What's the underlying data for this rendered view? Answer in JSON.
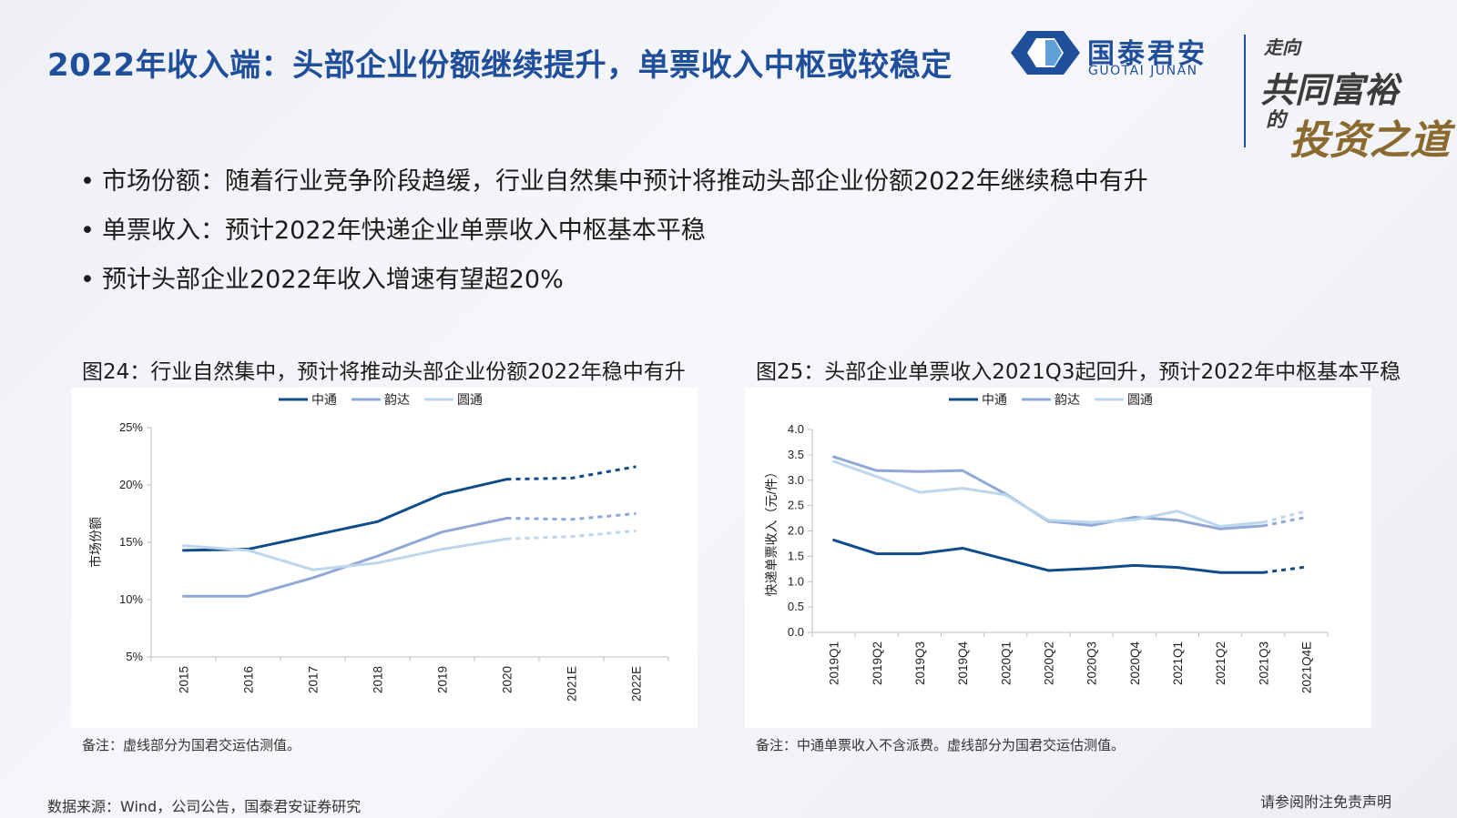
{
  "page": {
    "title": "2022年收入端：头部企业份额继续提升，单票收入中枢或较稳定",
    "logo": {
      "name": "国泰君安",
      "name_en": "GUOTAI JUNAN"
    },
    "slogan": {
      "line1": "走向",
      "line2": "共同富裕",
      "line3": "的",
      "line4": "投资之道"
    },
    "bullets": [
      "市场份额：随着行业竞争阶段趋缓，行业自然集中预计将推动头部企业份额2022年继续稳中有升",
      "单票收入：预计2022年快递企业单票收入中枢基本平稳",
      "预计头部企业2022年收入增速有望超20%"
    ],
    "bullet_symbol": "•",
    "source": "数据来源：Wind，公司公告，国泰君安证券研究",
    "disclaimer": "请参阅附注免责声明",
    "colors": {
      "title": "#1f4e9a",
      "zto": "#0f4c8a",
      "yunda": "#8fa8d6",
      "yto": "#bcd6ee"
    }
  },
  "chart_data": [
    {
      "type": "line",
      "caption": "图24：行业自然集中，预计将推动头部企业份额2022年稳中有升",
      "note": "备注：虚线部分为国君交运估测值。",
      "categories": [
        "2015",
        "2016",
        "2017",
        "2018",
        "2019",
        "2020",
        "2021E",
        "2022E"
      ],
      "ylabel": "市场份额",
      "ylim": [
        5,
        25
      ],
      "yticks": [
        5,
        10,
        15,
        20,
        25
      ],
      "ytick_labels": [
        "5%",
        "10%",
        "15%",
        "20%",
        "25%"
      ],
      "estimated_from_index": 5,
      "legend_position": "top",
      "series": [
        {
          "name": "中通",
          "values": [
            14.3,
            14.4,
            15.6,
            16.8,
            19.2,
            20.5,
            20.6,
            21.6
          ]
        },
        {
          "name": "韵达",
          "values": [
            10.3,
            10.3,
            11.9,
            13.8,
            15.9,
            17.1,
            17.0,
            17.5
          ]
        },
        {
          "name": "圆通",
          "values": [
            14.7,
            14.3,
            12.6,
            13.2,
            14.4,
            15.3,
            15.5,
            16.0
          ]
        }
      ]
    },
    {
      "type": "line",
      "caption": "图25：头部企业单票收入2021Q3起回升，预计2022年中枢基本平稳",
      "note": "备注：中通单票收入不含派费。虚线部分为国君交运估测值。",
      "categories": [
        "2019Q1",
        "2019Q2",
        "2019Q3",
        "2019Q4",
        "2020Q1",
        "2020Q2",
        "2020Q3",
        "2020Q4",
        "2021Q1",
        "2021Q2",
        "2021Q3",
        "2021Q4E"
      ],
      "ylabel": "快递单票收入（元/件）",
      "ylim": [
        0,
        4
      ],
      "yticks": [
        0,
        0.5,
        1,
        1.5,
        2,
        2.5,
        3,
        3.5,
        4
      ],
      "ytick_labels": [
        "0.0",
        "0.5",
        "1.0",
        "1.5",
        "2.0",
        "2.5",
        "3.0",
        "3.5",
        "4.0"
      ],
      "estimated_from_index": 10,
      "legend_position": "top",
      "series": [
        {
          "name": "中通",
          "values": [
            1.82,
            1.55,
            1.55,
            1.66,
            1.44,
            1.22,
            1.26,
            1.32,
            1.28,
            1.18,
            1.18,
            1.29
          ]
        },
        {
          "name": "韵达",
          "values": [
            3.46,
            3.19,
            3.17,
            3.19,
            2.73,
            2.19,
            2.11,
            2.27,
            2.21,
            2.04,
            2.1,
            2.27
          ]
        },
        {
          "name": "圆通",
          "values": [
            3.37,
            3.07,
            2.76,
            2.84,
            2.71,
            2.21,
            2.17,
            2.22,
            2.39,
            2.09,
            2.17,
            2.39
          ]
        }
      ]
    }
  ]
}
